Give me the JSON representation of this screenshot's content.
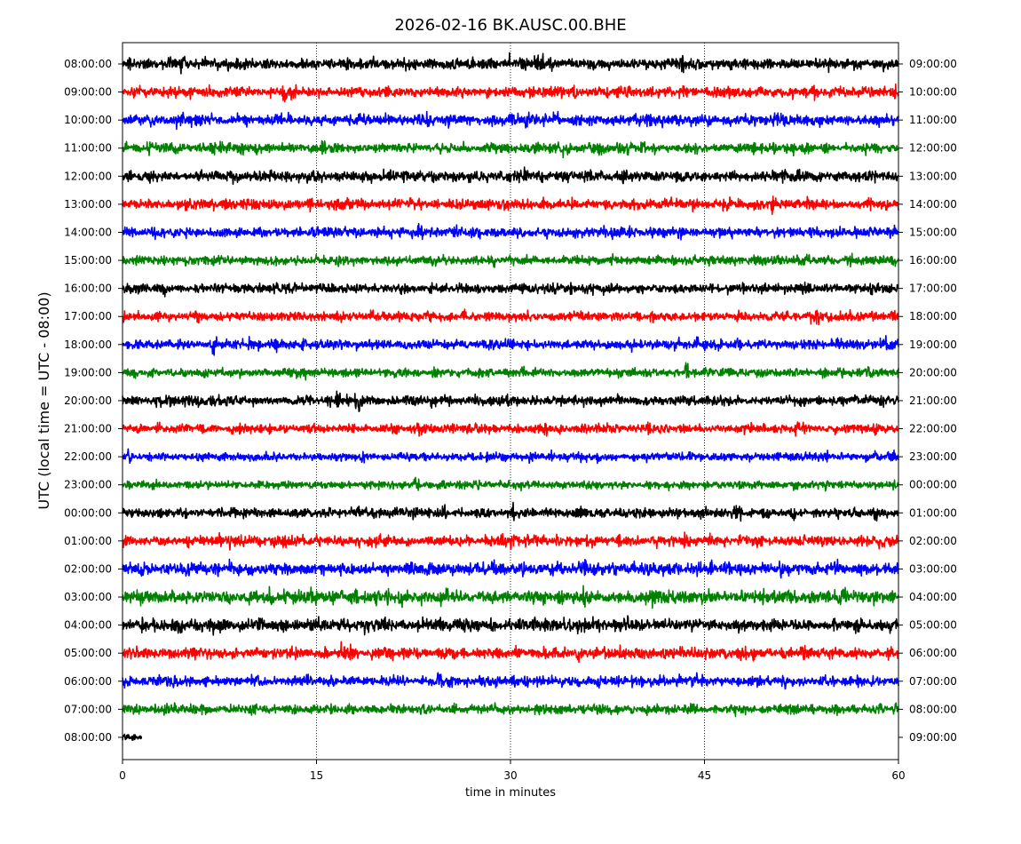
{
  "chart_data": {
    "type": "line",
    "title": "2026-02-16 BK.AUSC.00.BHE",
    "xlabel": "time in minutes",
    "ylabel": "UTC (local time = UTC - 08:00)",
    "xlim": [
      0,
      60
    ],
    "x_ticks": [
      "0",
      "15",
      "30",
      "45",
      "60"
    ],
    "x_tick_values": [
      0,
      15,
      30,
      45,
      60
    ],
    "vertical_grid_at": [
      15,
      30,
      45
    ],
    "grid_style": "dotted",
    "left_ticks": [
      "08:00:00",
      "09:00:00",
      "10:00:00",
      "11:00:00",
      "12:00:00",
      "13:00:00",
      "14:00:00",
      "15:00:00",
      "16:00:00",
      "17:00:00",
      "18:00:00",
      "19:00:00",
      "20:00:00",
      "21:00:00",
      "22:00:00",
      "23:00:00",
      "00:00:00",
      "01:00:00",
      "02:00:00",
      "03:00:00",
      "04:00:00",
      "05:00:00",
      "06:00:00",
      "07:00:00",
      "08:00:00"
    ],
    "right_ticks": [
      "09:00:00",
      "10:00:00",
      "11:00:00",
      "12:00:00",
      "13:00:00",
      "14:00:00",
      "15:00:00",
      "16:00:00",
      "17:00:00",
      "18:00:00",
      "19:00:00",
      "20:00:00",
      "21:00:00",
      "22:00:00",
      "23:00:00",
      "00:00:00",
      "01:00:00",
      "02:00:00",
      "03:00:00",
      "04:00:00",
      "05:00:00",
      "06:00:00",
      "07:00:00",
      "08:00:00",
      "09:00:00"
    ],
    "trace_colors": [
      "#000000",
      "#ff0000",
      "#0000ff",
      "#008000"
    ],
    "traces": [
      {
        "row": 0,
        "start_min": 0,
        "end_min": 60,
        "amp": 1.0
      },
      {
        "row": 1,
        "start_min": 0,
        "end_min": 60,
        "amp": 1.0
      },
      {
        "row": 2,
        "start_min": 0,
        "end_min": 60,
        "amp": 1.05
      },
      {
        "row": 3,
        "start_min": 0,
        "end_min": 60,
        "amp": 0.95
      },
      {
        "row": 4,
        "start_min": 0,
        "end_min": 60,
        "amp": 1.0
      },
      {
        "row": 5,
        "start_min": 0,
        "end_min": 60,
        "amp": 1.0
      },
      {
        "row": 6,
        "start_min": 0,
        "end_min": 60,
        "amp": 0.95
      },
      {
        "row": 7,
        "start_min": 0,
        "end_min": 60,
        "amp": 0.85
      },
      {
        "row": 8,
        "start_min": 0,
        "end_min": 60,
        "amp": 0.9
      },
      {
        "row": 9,
        "start_min": 0,
        "end_min": 60,
        "amp": 0.85
      },
      {
        "row": 10,
        "start_min": 0,
        "end_min": 60,
        "amp": 0.9
      },
      {
        "row": 11,
        "start_min": 0,
        "end_min": 60,
        "amp": 0.8
      },
      {
        "row": 12,
        "start_min": 0,
        "end_min": 60,
        "amp": 0.95
      },
      {
        "row": 13,
        "start_min": 0,
        "end_min": 60,
        "amp": 0.85
      },
      {
        "row": 14,
        "start_min": 0,
        "end_min": 60,
        "amp": 0.8
      },
      {
        "row": 15,
        "start_min": 0,
        "end_min": 60,
        "amp": 0.75
      },
      {
        "row": 16,
        "start_min": 0,
        "end_min": 60,
        "amp": 0.9
      },
      {
        "row": 17,
        "start_min": 0,
        "end_min": 60,
        "amp": 1.0
      },
      {
        "row": 18,
        "start_min": 0,
        "end_min": 60,
        "amp": 1.15
      },
      {
        "row": 19,
        "start_min": 0,
        "end_min": 60,
        "amp": 1.25
      },
      {
        "row": 20,
        "start_min": 0,
        "end_min": 60,
        "amp": 1.2
      },
      {
        "row": 21,
        "start_min": 0,
        "end_min": 60,
        "amp": 1.05
      },
      {
        "row": 22,
        "start_min": 0,
        "end_min": 60,
        "amp": 0.95
      },
      {
        "row": 23,
        "start_min": 0,
        "end_min": 60,
        "amp": 0.85
      },
      {
        "row": 24,
        "start_min": 0,
        "end_min": 1.5,
        "amp": 0.6
      }
    ]
  }
}
